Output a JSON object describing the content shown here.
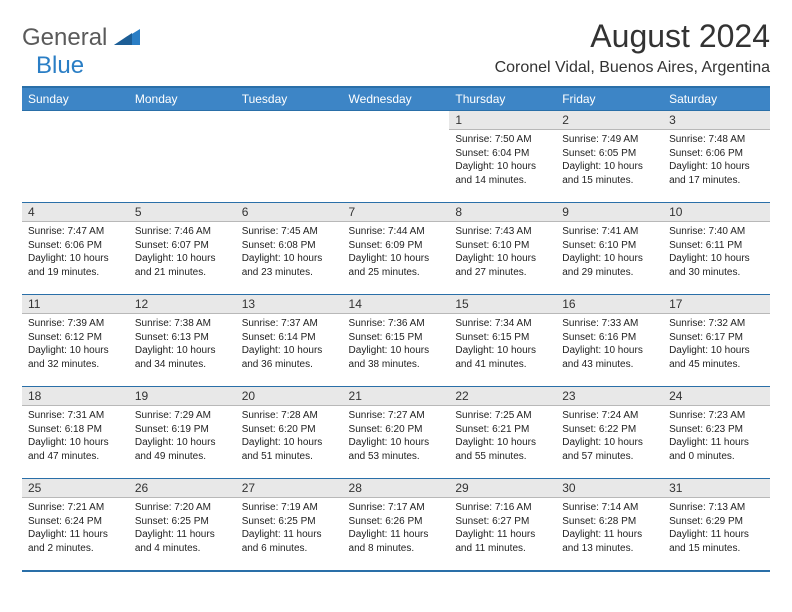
{
  "logo": {
    "general": "General",
    "blue": "Blue"
  },
  "title": {
    "month": "August 2024",
    "location": "Coronel Vidal, Buenos Aires, Argentina"
  },
  "colors": {
    "header_bg": "#3d85c6",
    "header_text": "#ffffff",
    "daynum_bg": "#e8e8e8",
    "border": "#2a6fa8",
    "logo_gray": "#5a5a5a",
    "logo_blue": "#2a7ec5"
  },
  "days": [
    "Sunday",
    "Monday",
    "Tuesday",
    "Wednesday",
    "Thursday",
    "Friday",
    "Saturday"
  ],
  "weeks": [
    [
      null,
      null,
      null,
      null,
      {
        "n": "1",
        "sr": "7:50 AM",
        "ss": "6:04 PM",
        "dl": "10 hours and 14 minutes."
      },
      {
        "n": "2",
        "sr": "7:49 AM",
        "ss": "6:05 PM",
        "dl": "10 hours and 15 minutes."
      },
      {
        "n": "3",
        "sr": "7:48 AM",
        "ss": "6:06 PM",
        "dl": "10 hours and 17 minutes."
      }
    ],
    [
      {
        "n": "4",
        "sr": "7:47 AM",
        "ss": "6:06 PM",
        "dl": "10 hours and 19 minutes."
      },
      {
        "n": "5",
        "sr": "7:46 AM",
        "ss": "6:07 PM",
        "dl": "10 hours and 21 minutes."
      },
      {
        "n": "6",
        "sr": "7:45 AM",
        "ss": "6:08 PM",
        "dl": "10 hours and 23 minutes."
      },
      {
        "n": "7",
        "sr": "7:44 AM",
        "ss": "6:09 PM",
        "dl": "10 hours and 25 minutes."
      },
      {
        "n": "8",
        "sr": "7:43 AM",
        "ss": "6:10 PM",
        "dl": "10 hours and 27 minutes."
      },
      {
        "n": "9",
        "sr": "7:41 AM",
        "ss": "6:10 PM",
        "dl": "10 hours and 29 minutes."
      },
      {
        "n": "10",
        "sr": "7:40 AM",
        "ss": "6:11 PM",
        "dl": "10 hours and 30 minutes."
      }
    ],
    [
      {
        "n": "11",
        "sr": "7:39 AM",
        "ss": "6:12 PM",
        "dl": "10 hours and 32 minutes."
      },
      {
        "n": "12",
        "sr": "7:38 AM",
        "ss": "6:13 PM",
        "dl": "10 hours and 34 minutes."
      },
      {
        "n": "13",
        "sr": "7:37 AM",
        "ss": "6:14 PM",
        "dl": "10 hours and 36 minutes."
      },
      {
        "n": "14",
        "sr": "7:36 AM",
        "ss": "6:15 PM",
        "dl": "10 hours and 38 minutes."
      },
      {
        "n": "15",
        "sr": "7:34 AM",
        "ss": "6:15 PM",
        "dl": "10 hours and 41 minutes."
      },
      {
        "n": "16",
        "sr": "7:33 AM",
        "ss": "6:16 PM",
        "dl": "10 hours and 43 minutes."
      },
      {
        "n": "17",
        "sr": "7:32 AM",
        "ss": "6:17 PM",
        "dl": "10 hours and 45 minutes."
      }
    ],
    [
      {
        "n": "18",
        "sr": "7:31 AM",
        "ss": "6:18 PM",
        "dl": "10 hours and 47 minutes."
      },
      {
        "n": "19",
        "sr": "7:29 AM",
        "ss": "6:19 PM",
        "dl": "10 hours and 49 minutes."
      },
      {
        "n": "20",
        "sr": "7:28 AM",
        "ss": "6:20 PM",
        "dl": "10 hours and 51 minutes."
      },
      {
        "n": "21",
        "sr": "7:27 AM",
        "ss": "6:20 PM",
        "dl": "10 hours and 53 minutes."
      },
      {
        "n": "22",
        "sr": "7:25 AM",
        "ss": "6:21 PM",
        "dl": "10 hours and 55 minutes."
      },
      {
        "n": "23",
        "sr": "7:24 AM",
        "ss": "6:22 PM",
        "dl": "10 hours and 57 minutes."
      },
      {
        "n": "24",
        "sr": "7:23 AM",
        "ss": "6:23 PM",
        "dl": "11 hours and 0 minutes."
      }
    ],
    [
      {
        "n": "25",
        "sr": "7:21 AM",
        "ss": "6:24 PM",
        "dl": "11 hours and 2 minutes."
      },
      {
        "n": "26",
        "sr": "7:20 AM",
        "ss": "6:25 PM",
        "dl": "11 hours and 4 minutes."
      },
      {
        "n": "27",
        "sr": "7:19 AM",
        "ss": "6:25 PM",
        "dl": "11 hours and 6 minutes."
      },
      {
        "n": "28",
        "sr": "7:17 AM",
        "ss": "6:26 PM",
        "dl": "11 hours and 8 minutes."
      },
      {
        "n": "29",
        "sr": "7:16 AM",
        "ss": "6:27 PM",
        "dl": "11 hours and 11 minutes."
      },
      {
        "n": "30",
        "sr": "7:14 AM",
        "ss": "6:28 PM",
        "dl": "11 hours and 13 minutes."
      },
      {
        "n": "31",
        "sr": "7:13 AM",
        "ss": "6:29 PM",
        "dl": "11 hours and 15 minutes."
      }
    ]
  ]
}
